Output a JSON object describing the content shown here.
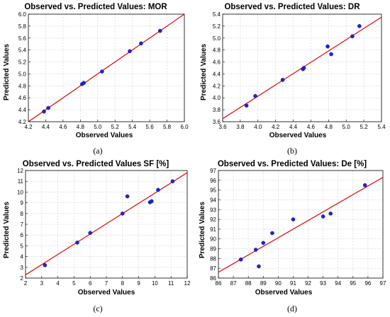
{
  "chart_data": [
    {
      "type": "scatter",
      "title": "Observed vs. Predicted Values: MOR",
      "xlabel": "Observed Values",
      "ylabel": "Predicted Values",
      "caption": "(a)",
      "xlim": [
        4.2,
        6.0
      ],
      "ylim": [
        4.2,
        6.0
      ],
      "xticks": [
        "4.2",
        "4.4",
        "4.6",
        "4.8",
        "5.0",
        "5.2",
        "5.4",
        "5.6",
        "5.8",
        "6.0"
      ],
      "yticks": [
        "4.2",
        "4.4",
        "4.6",
        "4.8",
        "5.0",
        "5.2",
        "5.4",
        "5.6",
        "5.8",
        "6.0"
      ],
      "fit_line": [
        [
          4.2,
          4.2
        ],
        [
          6.0,
          6.0
        ]
      ],
      "points": [
        [
          4.38,
          4.37
        ],
        [
          4.43,
          4.43
        ],
        [
          4.82,
          4.83
        ],
        [
          4.84,
          4.85
        ],
        [
          5.05,
          5.04
        ],
        [
          5.37,
          5.38
        ],
        [
          5.5,
          5.51
        ],
        [
          5.72,
          5.72
        ]
      ],
      "grid": true
    },
    {
      "type": "scatter",
      "title": "Observed vs. Predicted Values: DR",
      "xlabel": "Observed Values",
      "ylabel": "Predicted Values",
      "caption": "(b)",
      "xlim": [
        3.6,
        5.4
      ],
      "ylim": [
        3.6,
        5.4
      ],
      "xticks": [
        "3.6",
        "3.8",
        "4.0",
        "4.2",
        "4.4",
        "4.6",
        "4.8",
        "5.0",
        "5.2",
        "5.4"
      ],
      "yticks": [
        "3.6",
        "3.8",
        "4.0",
        "4.2",
        "4.4",
        "4.6",
        "4.8",
        "5.0",
        "5.2",
        "5.4"
      ],
      "fit_line": [
        [
          3.6,
          3.65
        ],
        [
          5.4,
          5.35
        ]
      ],
      "points": [
        [
          3.87,
          3.87
        ],
        [
          3.97,
          4.03
        ],
        [
          4.28,
          4.3
        ],
        [
          4.51,
          4.48
        ],
        [
          4.52,
          4.5
        ],
        [
          4.79,
          4.86
        ],
        [
          4.83,
          4.73
        ],
        [
          5.07,
          5.03
        ],
        [
          5.15,
          5.2
        ]
      ],
      "grid": true
    },
    {
      "type": "scatter",
      "title": "Observed vs. Predicted Values SF [%]",
      "xlabel": "Observed Values",
      "ylabel": "Predicted Values",
      "caption": "(c)",
      "xlim": [
        2,
        12
      ],
      "ylim": [
        2,
        12
      ],
      "xticks": [
        "2",
        "3",
        "4",
        "5",
        "6",
        "7",
        "8",
        "9",
        "10",
        "11",
        "12"
      ],
      "yticks": [
        "2",
        "3",
        "4",
        "5",
        "6",
        "7",
        "8",
        "9",
        "10",
        "11",
        "12"
      ],
      "fit_line": [
        [
          2.0,
          2.3
        ],
        [
          12.0,
          11.8
        ]
      ],
      "points": [
        [
          3.2,
          3.2
        ],
        [
          5.2,
          5.3
        ],
        [
          6.0,
          6.2
        ],
        [
          8.0,
          8.0
        ],
        [
          8.3,
          9.6
        ],
        [
          9.7,
          9.05
        ],
        [
          9.8,
          9.15
        ],
        [
          10.2,
          10.2
        ],
        [
          11.1,
          11.0
        ]
      ],
      "grid": true
    },
    {
      "type": "scatter",
      "title": "Observed vs. Predicted Values: De [%]",
      "xlabel": "Observed Values",
      "ylabel": "Predicted Values",
      "caption": "(d)",
      "xlim": [
        86,
        97
      ],
      "ylim": [
        86,
        97
      ],
      "xticks": [
        "86",
        "87",
        "88",
        "89",
        "90",
        "91",
        "92",
        "93",
        "94",
        "95",
        "96",
        "97"
      ],
      "yticks": [
        "86",
        "87",
        "88",
        "89",
        "90",
        "91",
        "92",
        "93",
        "94",
        "95",
        "96",
        "97"
      ],
      "fit_line": [
        [
          86.0,
          86.6
        ],
        [
          97.0,
          96.3
        ]
      ],
      "points": [
        [
          87.5,
          87.9
        ],
        [
          88.5,
          88.9
        ],
        [
          88.7,
          87.2
        ],
        [
          89.0,
          89.6
        ],
        [
          89.6,
          90.6
        ],
        [
          91.0,
          92.0
        ],
        [
          93.0,
          92.3
        ],
        [
          93.5,
          92.6
        ],
        [
          95.8,
          95.5
        ]
      ],
      "grid": true
    }
  ]
}
